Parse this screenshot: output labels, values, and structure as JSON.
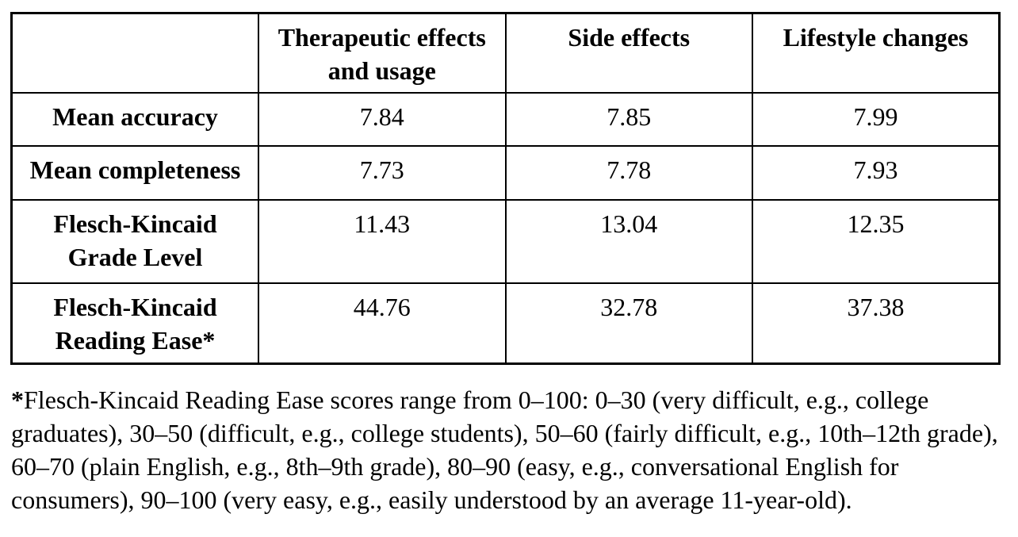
{
  "page": {
    "background_color": "#ffffff",
    "text_color": "#000000",
    "border_color": "#000000"
  },
  "table": {
    "columns": [
      "",
      "Therapeutic effects and usage",
      "Side effects",
      "Lifestyle changes"
    ],
    "rows": [
      {
        "label": "Mean accuracy",
        "values": [
          "7.84",
          "7.85",
          "7.99"
        ]
      },
      {
        "label": "Mean completeness",
        "values": [
          "7.73",
          "7.78",
          "7.93"
        ]
      },
      {
        "label": "Flesch-Kincaid Grade Level",
        "values": [
          "11.43",
          "13.04",
          "12.35"
        ]
      },
      {
        "label": "Flesch-Kincaid Reading Ease*",
        "values": [
          "44.76",
          "32.78",
          "37.38"
        ]
      }
    ]
  },
  "footnote": {
    "marker": "*",
    "text": "Flesch-Kincaid Reading Ease scores range from 0–100: 0–30 (very difficult, e.g., college graduates), 30–50 (difficult, e.g., college students), 50–60 (fairly difficult, e.g., 10th–12th grade), 60–70 (plain English, e.g., 8th–9th grade), 80–90 (easy, e.g., conversational English for consumers), 90–100 (very easy, e.g., easily understood by an average 11-year-old)."
  }
}
